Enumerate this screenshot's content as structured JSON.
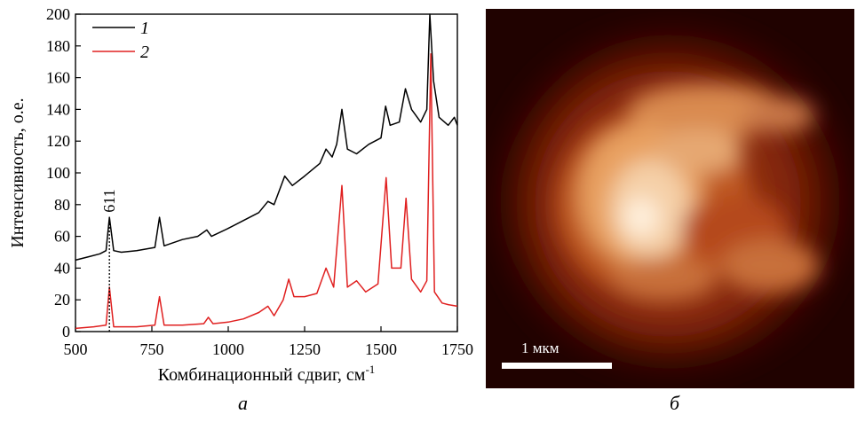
{
  "chart_data": {
    "type": "line",
    "xlabel": "Комбинационный сдвиг, см",
    "xlabel_sup": "-1",
    "ylabel": "Интенсивность, о.е.",
    "xlim": [
      500,
      1750
    ],
    "ylim": [
      0,
      200
    ],
    "xticks": [
      500,
      750,
      1000,
      1250,
      1500,
      1750
    ],
    "yticks": [
      0,
      20,
      40,
      60,
      80,
      100,
      120,
      140,
      160,
      180,
      200
    ],
    "grid": false,
    "legend_position": "top-left",
    "annotation": {
      "text": "611",
      "x": 611
    },
    "series": [
      {
        "name": "1",
        "color": "#000000",
        "points": [
          [
            500,
            45
          ],
          [
            540,
            47
          ],
          [
            580,
            49
          ],
          [
            600,
            51
          ],
          [
            611,
            72
          ],
          [
            625,
            51
          ],
          [
            650,
            50
          ],
          [
            700,
            51
          ],
          [
            760,
            53
          ],
          [
            775,
            72
          ],
          [
            790,
            54
          ],
          [
            850,
            58
          ],
          [
            900,
            60
          ],
          [
            930,
            64
          ],
          [
            945,
            60
          ],
          [
            1000,
            65
          ],
          [
            1050,
            70
          ],
          [
            1100,
            75
          ],
          [
            1130,
            82
          ],
          [
            1150,
            80
          ],
          [
            1185,
            98
          ],
          [
            1210,
            92
          ],
          [
            1250,
            98
          ],
          [
            1300,
            106
          ],
          [
            1320,
            115
          ],
          [
            1340,
            110
          ],
          [
            1355,
            118
          ],
          [
            1372,
            140
          ],
          [
            1390,
            115
          ],
          [
            1420,
            112
          ],
          [
            1460,
            118
          ],
          [
            1500,
            122
          ],
          [
            1515,
            142
          ],
          [
            1530,
            130
          ],
          [
            1560,
            132
          ],
          [
            1580,
            153
          ],
          [
            1600,
            140
          ],
          [
            1630,
            132
          ],
          [
            1650,
            140
          ],
          [
            1660,
            200
          ],
          [
            1672,
            158
          ],
          [
            1690,
            135
          ],
          [
            1720,
            130
          ],
          [
            1740,
            135
          ],
          [
            1750,
            130
          ]
        ]
      },
      {
        "name": "2",
        "color": "#e02020",
        "points": [
          [
            500,
            2
          ],
          [
            560,
            3
          ],
          [
            600,
            4
          ],
          [
            611,
            28
          ],
          [
            625,
            3
          ],
          [
            700,
            3
          ],
          [
            760,
            4
          ],
          [
            775,
            22
          ],
          [
            790,
            4
          ],
          [
            850,
            4
          ],
          [
            920,
            5
          ],
          [
            935,
            9
          ],
          [
            950,
            5
          ],
          [
            1000,
            6
          ],
          [
            1050,
            8
          ],
          [
            1100,
            12
          ],
          [
            1130,
            16
          ],
          [
            1150,
            10
          ],
          [
            1180,
            20
          ],
          [
            1198,
            33
          ],
          [
            1215,
            22
          ],
          [
            1250,
            22
          ],
          [
            1290,
            24
          ],
          [
            1320,
            40
          ],
          [
            1345,
            28
          ],
          [
            1372,
            92
          ],
          [
            1390,
            28
          ],
          [
            1420,
            32
          ],
          [
            1450,
            25
          ],
          [
            1490,
            30
          ],
          [
            1517,
            97
          ],
          [
            1535,
            40
          ],
          [
            1565,
            40
          ],
          [
            1582,
            84
          ],
          [
            1600,
            33
          ],
          [
            1630,
            25
          ],
          [
            1650,
            32
          ],
          [
            1663,
            175
          ],
          [
            1675,
            25
          ],
          [
            1700,
            18
          ],
          [
            1720,
            17
          ],
          [
            1750,
            16
          ]
        ]
      }
    ]
  },
  "labels": {
    "panel_a": "а",
    "panel_b": "б",
    "scalebar": "1 мкм"
  },
  "map": {
    "background_color": "#200200",
    "scalebar_color": "#ffffff"
  }
}
